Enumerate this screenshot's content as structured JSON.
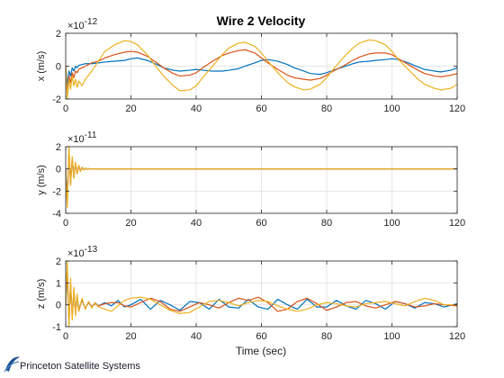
{
  "figure": {
    "title": "Wire 2 Velocity",
    "xlabel": "Time (sec)"
  },
  "colors": {
    "series1": "#0072bd",
    "series2": "#d95319",
    "series3": "#edb120",
    "grid": "#e6e6e6",
    "axis": "#262626"
  },
  "logo": {
    "text": "Princeton Satellite Systems"
  },
  "chart_data": [
    {
      "type": "line",
      "title": "Wire 2 Velocity",
      "ylabel": "x (m/s)",
      "xlabel": "",
      "exponent_base": "×10",
      "exponent_power": "-12",
      "xlim": [
        0,
        120
      ],
      "ylim": [
        -2,
        2
      ],
      "xticks": [
        0,
        20,
        40,
        60,
        80,
        100,
        120
      ],
      "yticks": [
        -2,
        0,
        2
      ],
      "grid": true,
      "x": [
        0,
        0.5,
        1,
        1.5,
        2,
        2.5,
        3,
        3.5,
        4,
        5,
        6,
        8,
        10,
        12,
        15,
        18,
        20,
        22,
        25,
        28,
        30,
        33,
        35,
        38,
        40,
        42,
        45,
        48,
        50,
        53,
        55,
        58,
        60,
        62,
        65,
        68,
        70,
        73,
        75,
        78,
        80,
        82,
        85,
        88,
        90,
        93,
        95,
        98,
        100,
        102,
        105,
        108,
        110,
        113,
        115,
        118,
        120
      ],
      "series": [
        {
          "values": [
            0,
            -1.2,
            -0.3,
            -0.6,
            -0.1,
            -0.3,
            0.0,
            -0.1,
            0.05,
            0.1,
            0.15,
            0.15,
            0.2,
            0.25,
            0.3,
            0.35,
            0.45,
            0.5,
            0.35,
            0.1,
            -0.1,
            -0.25,
            -0.3,
            -0.25,
            -0.2,
            -0.25,
            -0.3,
            -0.3,
            -0.25,
            -0.15,
            0.0,
            0.2,
            0.35,
            0.4,
            0.3,
            0.1,
            -0.1,
            -0.3,
            -0.45,
            -0.5,
            -0.4,
            -0.25,
            -0.05,
            0.15,
            0.25,
            0.3,
            0.35,
            0.4,
            0.45,
            0.4,
            0.2,
            -0.05,
            -0.2,
            -0.3,
            -0.35,
            -0.25,
            -0.1
          ]
        },
        {
          "values": [
            0,
            -1.8,
            -0.6,
            -1.0,
            -0.4,
            -0.7,
            -0.3,
            -0.4,
            -0.2,
            -0.1,
            0.0,
            0.2,
            0.3,
            0.5,
            0.7,
            0.85,
            0.9,
            0.85,
            0.6,
            0.2,
            -0.1,
            -0.45,
            -0.6,
            -0.55,
            -0.4,
            -0.1,
            0.3,
            0.65,
            0.8,
            0.95,
            1.0,
            0.8,
            0.5,
            0.2,
            -0.2,
            -0.55,
            -0.7,
            -0.8,
            -0.85,
            -0.75,
            -0.55,
            -0.3,
            0.0,
            0.35,
            0.55,
            0.75,
            0.8,
            0.8,
            0.7,
            0.45,
            0.1,
            -0.25,
            -0.45,
            -0.6,
            -0.65,
            -0.55,
            -0.45
          ]
        },
        {
          "values": [
            0,
            -2.0,
            -0.8,
            -1.4,
            -0.6,
            -1.2,
            -0.8,
            -1.3,
            -0.9,
            -1.2,
            -0.8,
            -0.3,
            0.3,
            0.9,
            1.3,
            1.55,
            1.5,
            1.3,
            0.7,
            -0.1,
            -0.6,
            -1.2,
            -1.5,
            -1.45,
            -1.2,
            -0.7,
            0.0,
            0.7,
            1.1,
            1.4,
            1.45,
            1.2,
            0.8,
            0.3,
            -0.4,
            -1.0,
            -1.25,
            -1.45,
            -1.4,
            -1.1,
            -0.7,
            -0.2,
            0.5,
            1.1,
            1.4,
            1.6,
            1.55,
            1.3,
            0.9,
            0.4,
            -0.2,
            -0.8,
            -1.1,
            -1.35,
            -1.45,
            -1.35,
            -1.1
          ]
        }
      ]
    },
    {
      "type": "line",
      "title": "",
      "ylabel": "y (m/s)",
      "xlabel": "",
      "exponent_base": "×10",
      "exponent_power": "-11",
      "xlim": [
        0,
        120
      ],
      "ylim": [
        -4,
        2
      ],
      "xticks": [
        0,
        20,
        40,
        60,
        80,
        100,
        120
      ],
      "yticks": [
        -4,
        -2,
        0,
        2
      ],
      "grid": true,
      "x": [
        0,
        0.5,
        1,
        1.5,
        2,
        2.5,
        3,
        3.5,
        4,
        4.5,
        5,
        5.5,
        6,
        6.5,
        7,
        7.5,
        8,
        9,
        10,
        12,
        15,
        20,
        40,
        60,
        80,
        100,
        120
      ],
      "series": [
        {
          "values": [
            0,
            -2.5,
            1.5,
            -1.2,
            0.9,
            -0.7,
            0.5,
            -0.4,
            0.3,
            -0.2,
            0.15,
            -0.1,
            0.07,
            -0.05,
            0.03,
            -0.02,
            0.01,
            0.0,
            0.0,
            0.0,
            0.0,
            0.0,
            0.0,
            0.0,
            0.0,
            0.0,
            0.0
          ]
        },
        {
          "values": [
            0,
            -3.2,
            1.8,
            -1.4,
            1.0,
            -0.8,
            0.55,
            -0.45,
            0.3,
            -0.22,
            0.15,
            -0.1,
            0.07,
            -0.05,
            0.03,
            -0.02,
            0.01,
            0.0,
            0.0,
            0.0,
            0.0,
            0.0,
            0.0,
            0.0,
            0.0,
            0.0,
            0.0
          ]
        },
        {
          "values": [
            0,
            -3.5,
            2.0,
            -1.5,
            1.1,
            -0.85,
            0.6,
            -0.45,
            0.32,
            -0.22,
            0.15,
            -0.1,
            0.07,
            -0.05,
            0.03,
            -0.02,
            0.01,
            0.0,
            0.0,
            0.0,
            0.0,
            0.0,
            0.0,
            0.0,
            0.0,
            0.0,
            0.0
          ]
        }
      ]
    },
    {
      "type": "line",
      "title": "",
      "ylabel": "z (m/s)",
      "xlabel": "Time (sec)",
      "exponent_base": "×10",
      "exponent_power": "-13",
      "xlim": [
        0,
        120
      ],
      "ylim": [
        -1,
        2
      ],
      "xticks": [
        0,
        20,
        40,
        60,
        80,
        100,
        120
      ],
      "yticks": [
        -1,
        0,
        1,
        2
      ],
      "grid": true,
      "x": [
        0,
        0.5,
        1,
        1.5,
        2,
        2.5,
        3,
        3.5,
        4,
        5,
        6,
        7,
        8,
        9,
        10,
        12,
        14,
        16,
        18,
        20,
        23,
        26,
        29,
        32,
        35,
        38,
        41,
        44,
        47,
        50,
        53,
        56,
        59,
        62,
        65,
        68,
        71,
        74,
        77,
        80,
        83,
        86,
        89,
        92,
        95,
        98,
        101,
        104,
        107,
        110,
        113,
        116,
        120
      ],
      "series": [
        {
          "values": [
            0,
            1.4,
            -0.7,
            0.9,
            -0.5,
            0.6,
            -0.3,
            0.4,
            -0.2,
            0.2,
            -0.15,
            0.1,
            -0.1,
            0.1,
            -0.05,
            0.1,
            -0.05,
            0.2,
            -0.1,
            0.0,
            0.25,
            -0.2,
            0.2,
            0.0,
            -0.25,
            0.15,
            0.1,
            -0.2,
            0.25,
            -0.1,
            -0.15,
            0.25,
            -0.1,
            -0.2,
            0.25,
            0.0,
            -0.2,
            0.25,
            -0.1,
            -0.1,
            0.2,
            -0.05,
            -0.2,
            0.2,
            0.05,
            -0.2,
            0.15,
            0.05,
            -0.15,
            0.1,
            0.05,
            -0.1,
            0.05
          ]
        },
        {
          "values": [
            0,
            1.7,
            -0.9,
            1.0,
            -0.6,
            0.7,
            -0.4,
            0.4,
            -0.3,
            0.25,
            -0.2,
            0.15,
            -0.1,
            0.05,
            -0.05,
            0.05,
            0.1,
            0.1,
            -0.05,
            -0.1,
            0.1,
            0.3,
            0.15,
            -0.2,
            -0.3,
            -0.1,
            0.1,
            0.0,
            -0.15,
            0.1,
            0.3,
            0.2,
            0.35,
            0.1,
            -0.3,
            -0.2,
            0.15,
            0.3,
            0.05,
            -0.25,
            -0.1,
            0.1,
            0.15,
            -0.05,
            -0.15,
            0.0,
            0.15,
            0.05,
            -0.1,
            -0.05,
            0.05,
            0.0,
            -0.05
          ]
        },
        {
          "values": [
            0,
            2.0,
            -1.0,
            1.2,
            -0.7,
            0.8,
            -0.5,
            0.5,
            -0.3,
            0.3,
            -0.2,
            0.15,
            -0.15,
            0.1,
            -0.1,
            -0.2,
            -0.3,
            -0.05,
            0.2,
            0.3,
            0.35,
            0.25,
            0.0,
            -0.25,
            -0.4,
            -0.35,
            -0.1,
            0.15,
            0.2,
            0.1,
            -0.05,
            0.1,
            0.2,
            0.15,
            -0.05,
            -0.2,
            -0.3,
            -0.2,
            0.0,
            0.1,
            0.05,
            -0.05,
            -0.1,
            0.05,
            0.1,
            0.15,
            0.05,
            -0.05,
            0.15,
            0.3,
            0.2,
            0.0,
            0.0
          ]
        }
      ]
    }
  ]
}
